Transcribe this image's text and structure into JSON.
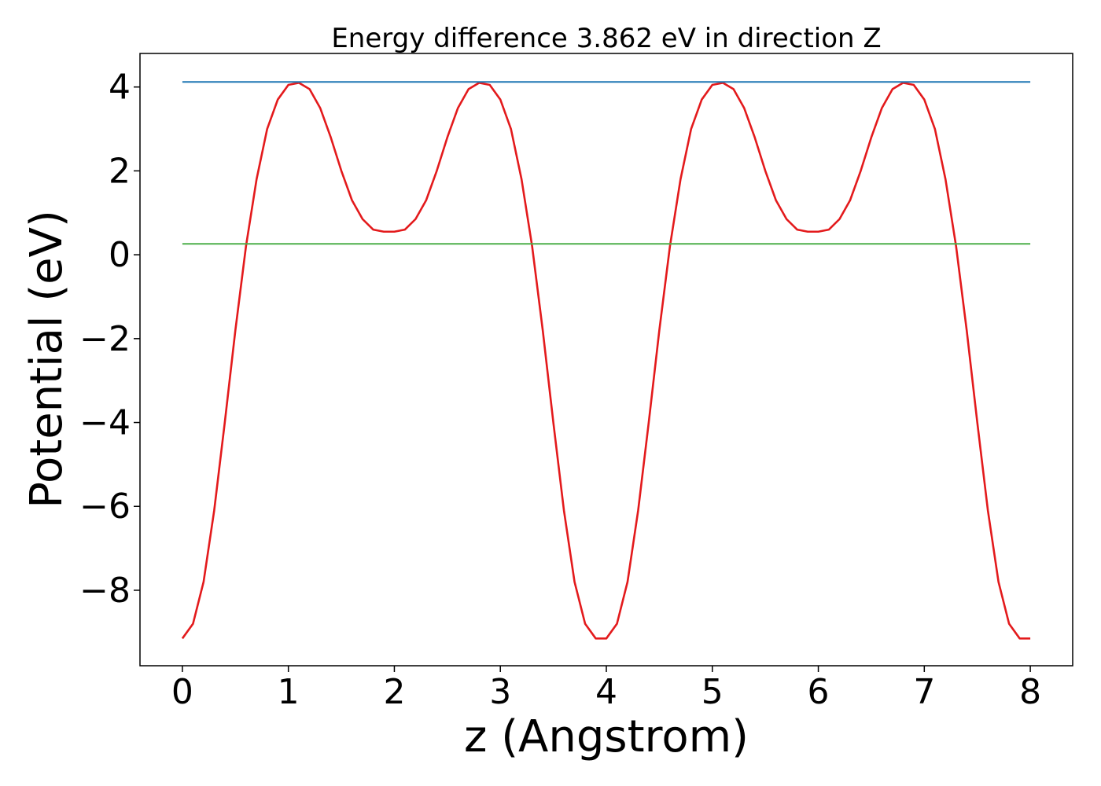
{
  "chart_data": {
    "type": "line",
    "title": "Energy difference 3.862 eV in direction Z",
    "xlabel": "z (Angstrom)",
    "ylabel": "Potential (eV)",
    "xlim": [
      -0.4,
      8.4
    ],
    "ylim": [
      -9.8,
      4.8
    ],
    "xticks": [
      0,
      1,
      2,
      3,
      4,
      5,
      6,
      7,
      8
    ],
    "yticks": [
      -8,
      -6,
      -4,
      -2,
      0,
      2,
      4
    ],
    "grid": false,
    "series": [
      {
        "role": "potential",
        "color": "#e31a1c",
        "x": [
          0.0,
          0.1,
          0.2,
          0.3,
          0.4,
          0.5,
          0.6,
          0.7,
          0.8,
          0.9,
          1.0,
          1.1,
          1.2,
          1.3,
          1.4,
          1.5,
          1.6,
          1.7,
          1.8,
          1.9,
          2.0,
          2.1,
          2.2,
          2.3,
          2.4,
          2.5,
          2.6,
          2.7,
          2.8,
          2.9,
          3.0,
          3.1,
          3.2,
          3.3,
          3.4,
          3.5,
          3.6,
          3.7,
          3.8,
          3.9,
          4.0,
          4.1,
          4.2,
          4.3,
          4.4,
          4.5,
          4.6,
          4.7,
          4.8,
          4.9,
          5.0,
          5.1,
          5.2,
          5.3,
          5.4,
          5.5,
          5.6,
          5.7,
          5.8,
          5.9,
          6.0,
          6.1,
          6.2,
          6.3,
          6.4,
          6.5,
          6.6,
          6.7,
          6.8,
          6.9,
          7.0,
          7.1,
          7.2,
          7.3,
          7.4,
          7.5,
          7.6,
          7.7,
          7.8,
          7.9,
          8.0
        ],
        "y": [
          -9.15,
          -8.8,
          -7.8,
          -6.1,
          -4.0,
          -1.8,
          0.2,
          1.8,
          3.0,
          3.7,
          4.05,
          4.1,
          3.95,
          3.5,
          2.8,
          2.0,
          1.3,
          0.85,
          0.6,
          0.55,
          0.55,
          0.6,
          0.85,
          1.3,
          2.0,
          2.8,
          3.5,
          3.95,
          4.1,
          4.05,
          3.7,
          3.0,
          1.8,
          0.2,
          -1.8,
          -4.0,
          -6.1,
          -7.8,
          -8.8,
          -9.15,
          -9.15,
          -8.8,
          -7.8,
          -6.1,
          -4.0,
          -1.8,
          0.2,
          1.8,
          3.0,
          3.7,
          4.05,
          4.1,
          3.95,
          3.5,
          2.8,
          2.0,
          1.3,
          0.85,
          0.6,
          0.55,
          0.55,
          0.6,
          0.85,
          1.3,
          2.0,
          2.8,
          3.5,
          3.95,
          4.1,
          4.05,
          3.7,
          3.0,
          1.8,
          0.2,
          -1.8,
          -4.0,
          -6.1,
          -7.8,
          -8.8,
          -9.15,
          -9.15
        ]
      },
      {
        "role": "maximum-level",
        "color": "#1f77b4",
        "x": [
          0,
          8
        ],
        "y": [
          4.12,
          4.12
        ]
      },
      {
        "role": "mean-level",
        "color": "#4daf4a",
        "x": [
          0,
          8
        ],
        "y": [
          0.26,
          0.26
        ]
      }
    ]
  }
}
